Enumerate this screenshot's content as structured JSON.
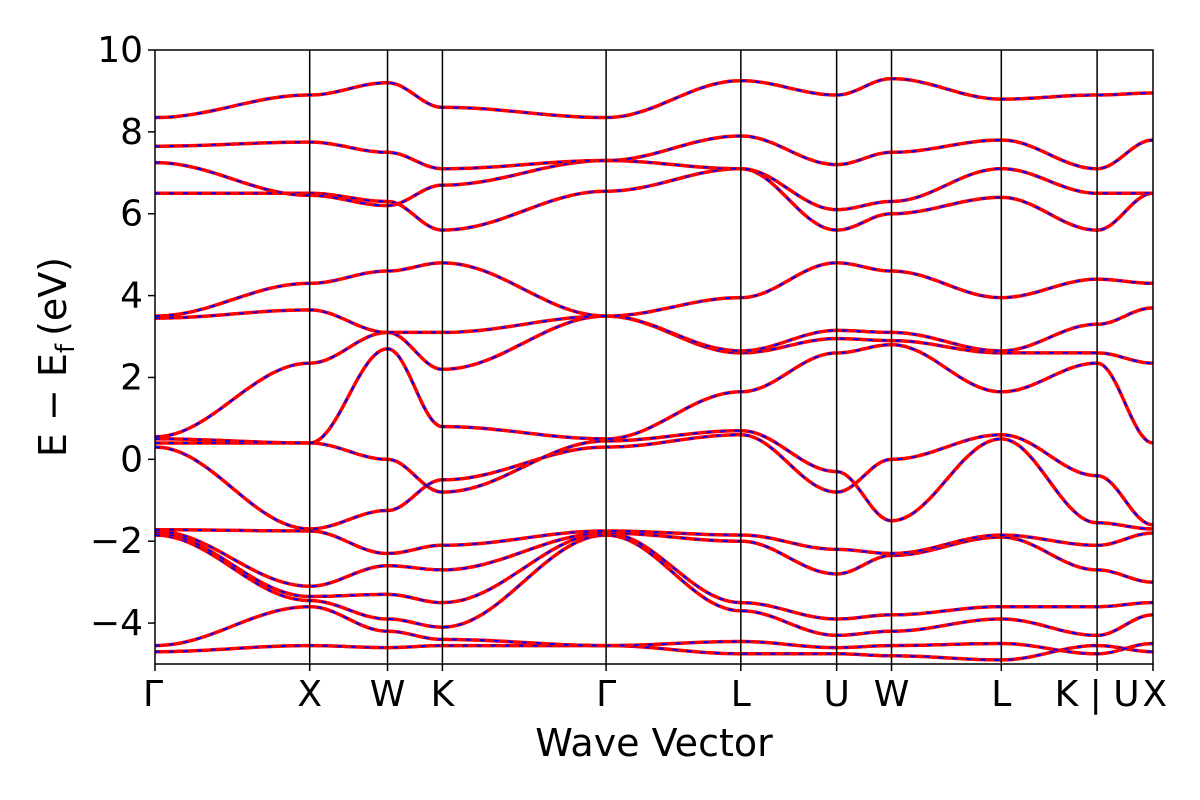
{
  "chart_data": {
    "type": "line",
    "xlabel": "Wave Vector",
    "ylabel": "E − E",
    "ylabel_sub": "f",
    "ylabel_unit": "(eV)",
    "ylim": [
      -5,
      10
    ],
    "xlim": [
      0,
      10
    ],
    "yticks": [
      -4,
      -2,
      0,
      2,
      4,
      6,
      8,
      10
    ],
    "ytick_labels": [
      "−4",
      "−2",
      "0",
      "2",
      "4",
      "6",
      "8",
      "10"
    ],
    "kpoints": [
      {
        "label": "Γ",
        "x": 0
      },
      {
        "label": "X",
        "x": 1.55
      },
      {
        "label": "W",
        "x": 2.33
      },
      {
        "label": "K",
        "x": 2.88
      },
      {
        "label": "Γ",
        "x": 4.52
      },
      {
        "label": "L",
        "x": 5.87
      },
      {
        "label": "U",
        "x": 6.83
      },
      {
        "label": "W",
        "x": 7.38
      },
      {
        "label": "L",
        "x": 8.48
      },
      {
        "label": "K | U",
        "x": 9.44
      },
      {
        "label": "X",
        "x": 10
      }
    ],
    "grid": false,
    "colors": {
      "series_a": "#ff0000",
      "series_b": "#0000ff",
      "kpath_lines": "#000000"
    },
    "bands": [
      {
        "x": [
          0,
          1.55,
          2.33,
          2.88,
          4.52,
          5.87,
          6.83,
          7.38,
          8.48,
          9.44,
          10
        ],
        "y": [
          -4.7,
          -4.55,
          -4.6,
          -4.55,
          -4.55,
          -4.75,
          -4.75,
          -4.8,
          -4.9,
          -4.55,
          -4.7
        ]
      },
      {
        "x": [
          0,
          1.55,
          2.33,
          2.88,
          4.52,
          5.87,
          6.83,
          7.38,
          8.48,
          9.44,
          10
        ],
        "y": [
          -4.55,
          -3.6,
          -4.2,
          -4.4,
          -4.55,
          -4.45,
          -4.6,
          -4.55,
          -4.5,
          -4.75,
          -4.5
        ]
      },
      {
        "x": [
          0,
          1.55,
          2.33,
          2.88,
          4.52,
          5.87,
          6.83,
          7.38,
          8.48,
          9.44,
          10
        ],
        "y": [
          -1.85,
          -3.45,
          -3.9,
          -4.1,
          -1.85,
          -3.7,
          -4.3,
          -4.2,
          -3.9,
          -4.3,
          -3.8
        ]
      },
      {
        "x": [
          0,
          1.55,
          2.33,
          2.88,
          4.52,
          5.87,
          6.83,
          7.38,
          8.48,
          9.44,
          10
        ],
        "y": [
          -1.8,
          -3.35,
          -3.3,
          -3.5,
          -1.8,
          -3.5,
          -3.9,
          -3.8,
          -3.6,
          -3.6,
          -3.5
        ]
      },
      {
        "x": [
          0,
          1.55,
          2.33,
          2.88,
          4.52,
          5.87,
          6.83,
          7.38,
          8.48,
          9.44,
          10
        ],
        "y": [
          -1.75,
          -3.1,
          -2.6,
          -2.7,
          -1.8,
          -2.0,
          -2.8,
          -2.35,
          -1.9,
          -2.7,
          -3.0
        ]
      },
      {
        "x": [
          0,
          1.55,
          2.33,
          2.88,
          4.52,
          5.87,
          6.83,
          7.38,
          8.48,
          9.44,
          10
        ],
        "y": [
          -1.72,
          -1.75,
          -2.3,
          -2.1,
          -1.75,
          -1.85,
          -2.2,
          -2.3,
          -1.85,
          -2.1,
          -1.8
        ]
      },
      {
        "x": [
          0,
          1.55,
          2.33,
          2.88,
          4.52,
          5.87,
          6.83,
          7.38,
          8.48,
          9.44,
          10
        ],
        "y": [
          0.3,
          -1.7,
          -1.25,
          -0.5,
          0.3,
          0.6,
          -0.8,
          0.0,
          0.6,
          -0.4,
          -1.6
        ]
      },
      {
        "x": [
          0,
          1.55,
          2.33,
          2.88,
          4.52,
          5.87,
          6.83,
          7.38,
          8.48,
          9.44,
          10
        ],
        "y": [
          0.4,
          0.4,
          0.0,
          -0.8,
          0.45,
          0.7,
          -0.3,
          -1.5,
          0.5,
          -1.55,
          -1.7
        ]
      },
      {
        "x": [
          0,
          1.55,
          2.33,
          2.88,
          4.52,
          5.87,
          6.83,
          7.38,
          8.48,
          9.44,
          10
        ],
        "y": [
          0.5,
          0.4,
          2.7,
          0.8,
          0.5,
          1.65,
          2.6,
          2.8,
          1.65,
          2.35,
          0.4
        ]
      },
      {
        "x": [
          0,
          1.55,
          2.33,
          2.88,
          4.52,
          5.87,
          6.83,
          7.38,
          8.48,
          9.44,
          10
        ],
        "y": [
          0.55,
          2.35,
          3.1,
          2.2,
          3.5,
          2.6,
          2.95,
          2.9,
          2.6,
          2.6,
          2.35
        ]
      },
      {
        "x": [
          0,
          1.55,
          2.33,
          2.88,
          4.52,
          5.87,
          6.83,
          7.38,
          8.48,
          9.44,
          10
        ],
        "y": [
          3.45,
          3.65,
          3.1,
          3.1,
          3.5,
          2.65,
          3.15,
          3.1,
          2.65,
          3.3,
          3.7
        ]
      },
      {
        "x": [
          0,
          1.55,
          2.33,
          2.88,
          4.52,
          5.87,
          6.83,
          7.38,
          8.48,
          9.44,
          10
        ],
        "y": [
          3.5,
          4.3,
          4.6,
          4.8,
          3.5,
          3.95,
          4.8,
          4.6,
          3.95,
          4.4,
          4.3
        ]
      },
      {
        "x": [
          0,
          1.55,
          2.33,
          2.88,
          4.52,
          5.87,
          6.83,
          7.38,
          8.48,
          9.44,
          10
        ],
        "y": [
          6.5,
          6.5,
          6.3,
          5.6,
          6.55,
          7.1,
          5.6,
          6.0,
          6.4,
          5.6,
          6.5
        ]
      },
      {
        "x": [
          0,
          1.55,
          2.33,
          2.88,
          4.52,
          5.87,
          6.83,
          7.38,
          8.48,
          9.44,
          10
        ],
        "y": [
          7.25,
          6.45,
          6.2,
          6.7,
          7.3,
          7.1,
          6.1,
          6.3,
          7.1,
          6.5,
          6.5
        ]
      },
      {
        "x": [
          0,
          1.55,
          2.33,
          2.88,
          4.52,
          5.87,
          6.83,
          7.38,
          8.48,
          9.44,
          10
        ],
        "y": [
          7.65,
          7.75,
          7.5,
          7.1,
          7.3,
          7.9,
          7.2,
          7.5,
          7.8,
          7.1,
          7.8
        ]
      },
      {
        "x": [
          0,
          1.55,
          2.33,
          2.88,
          4.52,
          5.87,
          6.83,
          7.38,
          8.48,
          9.44,
          10
        ],
        "y": [
          8.35,
          8.9,
          9.2,
          8.6,
          8.35,
          9.25,
          8.9,
          9.3,
          8.8,
          8.9,
          8.95
        ]
      }
    ]
  }
}
